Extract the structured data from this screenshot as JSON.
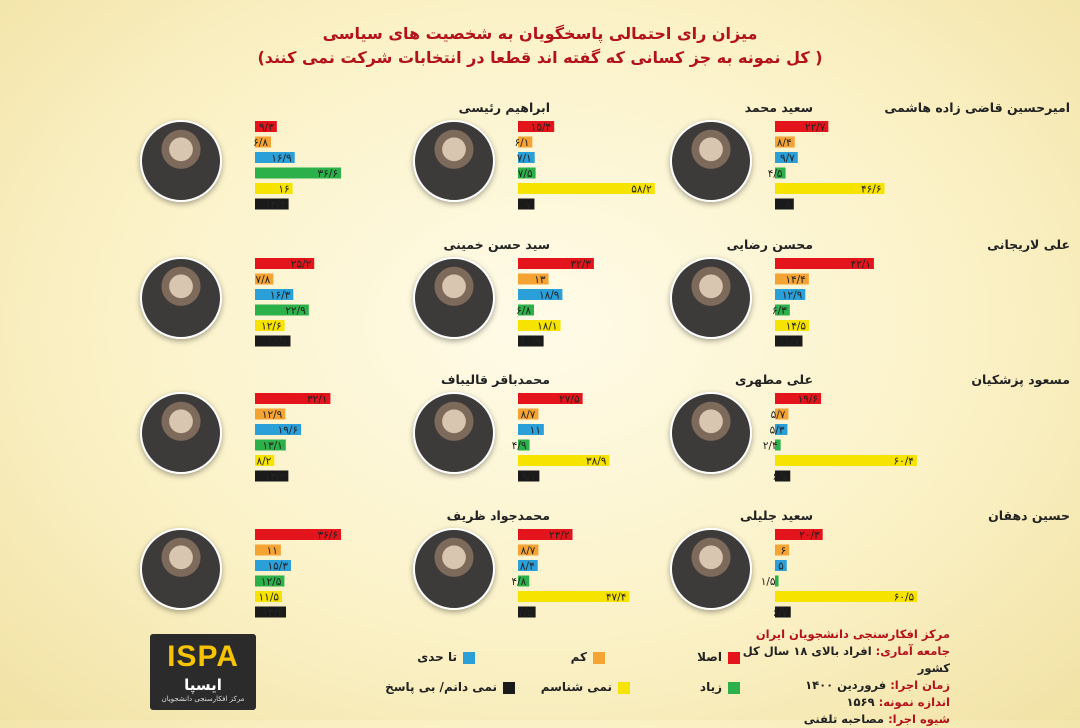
{
  "title": "میزان رای احتمالی پاسخگویان به شخصیت های سیاسی",
  "subtitle": "( کل نمونه به جز کسانی که گفته اند قطعا در انتخابات شرکت نمی کنند)",
  "colors": {
    "asla": "#e3141c",
    "kam": "#f5a332",
    "ta_hodi": "#2a9fd8",
    "ziad": "#2bb04a",
    "nemishenasam": "#f7e300",
    "nemidanam": "#1a1a1a"
  },
  "legend": [
    {
      "key": "asla",
      "label": "اصلا"
    },
    {
      "key": "kam",
      "label": "کم"
    },
    {
      "key": "ta_hodi",
      "label": "تا حدی"
    },
    {
      "key": "ziad",
      "label": "زیاد"
    },
    {
      "key": "nemishenasam",
      "label": "نمی شناسم"
    },
    {
      "key": "nemidanam",
      "label": "نمی دانم/ بی پاسخ"
    }
  ],
  "chart_data": {
    "type": "bar",
    "orientation": "horizontal",
    "title": "میزان رای احتمالی پاسخگویان به شخصیت های سیاسی",
    "subtitle": "( کل نمونه به جز کسانی که گفته اند قطعا در انتخابات شرکت نمی کنند)",
    "categories": [
      "اصلا",
      "کم",
      "تا حدی",
      "زیاد",
      "نمی شناسم",
      "نمی دانم/ بی پاسخ"
    ],
    "xlim": [
      0,
      62
    ],
    "panels": [
      {
        "name": "امیرحسین قاضی زاده هاشمی",
        "values": [
          22.7,
          8.4,
          9.7,
          4.5,
          46.6,
          8
        ],
        "labels": [
          "۲۲/۷",
          "۸/۴",
          "۹/۷",
          "۴/۵",
          "۴۶/۶",
          "۸"
        ]
      },
      {
        "name": "سعید محمد",
        "values": [
          15.4,
          6.1,
          7.1,
          7.5,
          58.2,
          7
        ],
        "labels": [
          "۱۵/۴",
          "۶/۱",
          "۷/۱",
          "۷/۵",
          "۵۸/۲",
          "۷"
        ]
      },
      {
        "name": "ابراهیم رئیسی",
        "values": [
          9.3,
          6.8,
          16.9,
          36.6,
          16,
          14.3
        ],
        "labels": [
          "۹/۳",
          "۶/۸",
          "۱۶/۹",
          "۳۶/۶",
          "۱۶",
          "۱۴/۳"
        ]
      },
      {
        "name": "علی لاریجانی",
        "values": [
          42.1,
          14.4,
          12.9,
          6.3,
          14.5,
          11.7
        ],
        "labels": [
          "۴۲/۱",
          "۱۴/۴",
          "۱۲/۹",
          "۶/۳",
          "۱۴/۵",
          "۱۱/۷"
        ]
      },
      {
        "name": "محسن رضایی",
        "values": [
          32.3,
          13,
          18.9,
          6.8,
          18.1,
          10.9
        ],
        "labels": [
          "۳۲/۳",
          "۱۳",
          "۱۸/۹",
          "۶/۸",
          "۱۸/۱",
          "۱۰/۹"
        ]
      },
      {
        "name": "سید حسن خمینی",
        "values": [
          25.2,
          7.8,
          16.3,
          22.9,
          12.6,
          15.1
        ],
        "labels": [
          "۲۵/۲",
          "۷/۸",
          "۱۶/۳",
          "۲۲/۹",
          "۱۲/۶",
          "۱۵/۱"
        ]
      },
      {
        "name": "مسعود پزشکیان",
        "values": [
          19.6,
          5.7,
          5.3,
          2.4,
          60.4,
          6.5
        ],
        "labels": [
          "۱۹/۶",
          "۵/۷",
          "۵/۳",
          "۲/۴",
          "۶۰/۴",
          "۶/۵"
        ]
      },
      {
        "name": "علی مطهری",
        "values": [
          27.5,
          8.7,
          11,
          4.9,
          38.9,
          9.1
        ],
        "labels": [
          "۲۷/۵",
          "۸/۷",
          "۱۱",
          "۴/۹",
          "۳۸/۹",
          "۹/۱"
        ]
      },
      {
        "name": "محمدباقر قالیباف",
        "values": [
          32.1,
          12.9,
          19.6,
          13.1,
          8.2,
          14.2
        ],
        "labels": [
          "۳۲/۱",
          "۱۲/۹",
          "۱۹/۶",
          "۱۳/۱",
          "۸/۲",
          "۱۴/۲"
        ]
      },
      {
        "name": "حسین دهقان",
        "values": [
          20.3,
          6,
          5,
          1.5,
          60.5,
          6.7
        ],
        "labels": [
          "۲۰/۳",
          "۶",
          "۵",
          "۱/۵",
          "۶۰/۵",
          "۶/۷"
        ]
      },
      {
        "name": "سعید جلیلی",
        "values": [
          23.2,
          8.7,
          8.4,
          4.8,
          47.4,
          7.5
        ],
        "labels": [
          "۲۳/۲",
          "۸/۷",
          "۸/۴",
          "۴/۸",
          "۴۷/۴",
          "۷/۵"
        ]
      },
      {
        "name": "محمدجواد ظریف",
        "values": [
          36.6,
          11,
          15.3,
          12.5,
          11.5,
          13.2
        ],
        "labels": [
          "۳۶/۶",
          "۱۱",
          "۱۵/۳",
          "۱۲/۵",
          "۱۱/۵",
          "۱۳/۲"
        ]
      }
    ]
  },
  "meta": {
    "org": "مرکز افکارسنجی دانشجویان ایران",
    "population_label": "جامعه آماری:",
    "population_value": "افراد بالای ۱۸ سال کل کشور",
    "date_label": "زمان اجرا:",
    "date_value": "فروردین ۱۴۰۰",
    "sample_label": "اندازه نمونه:",
    "sample_value": "۱۵۶۹",
    "method_label": "شیوه اجرا:",
    "method_value": "مصاحبه تلفنی"
  },
  "logo": {
    "en_a": "IS",
    "en_b": "PA",
    "fa": "ایسپا",
    "sub": "مرکز افکارسنجی دانشجویان"
  }
}
